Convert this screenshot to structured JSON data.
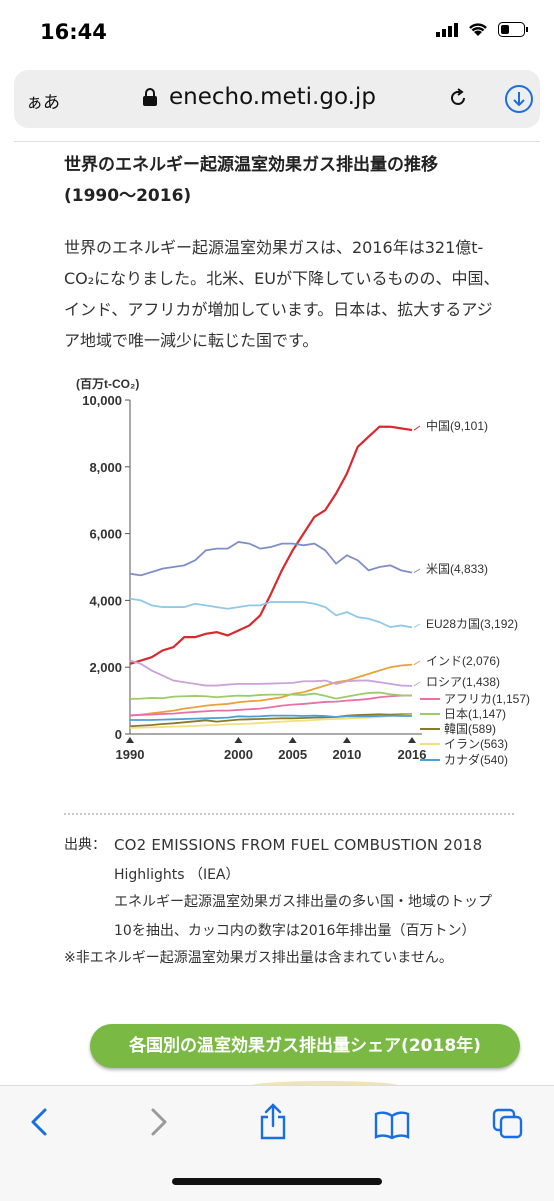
{
  "status_bar": {
    "time": "16:44"
  },
  "browser": {
    "aa_label": "ぁあ",
    "domain": "enecho.meti.go.jp"
  },
  "article": {
    "heading": "世界のエネルギー起源温室効果ガス排出量の推移(1990〜2016)",
    "body": "世界のエネルギー起源温室効果ガスは、2016年は321億t-CO₂になりました。北米、EUが下降しているものの、中国、インド、アフリカが増加しています。日本は、拡大するアジア地域で唯一減少に転じた国です。"
  },
  "chart_data": {
    "type": "line",
    "ylabel": "(百万t-CO₂)",
    "ylim": [
      0,
      10000
    ],
    "yticks": [
      "10,000",
      "8,000",
      "6,000",
      "4,000",
      "2,000",
      "0"
    ],
    "ytick_values": [
      10000,
      8000,
      6000,
      4000,
      2000,
      0
    ],
    "xticks": [
      "1990",
      "2000",
      "2005",
      "2010",
      "2016"
    ],
    "xtick_values": [
      1990,
      2000,
      2005,
      2010,
      2016
    ],
    "x": [
      1990,
      1991,
      1992,
      1993,
      1994,
      1995,
      1996,
      1997,
      1998,
      1999,
      2000,
      2001,
      2002,
      2003,
      2004,
      2005,
      2006,
      2007,
      2008,
      2009,
      2010,
      2011,
      2012,
      2013,
      2014,
      2015,
      2016
    ],
    "series": [
      {
        "name": "中国(9,101)",
        "color": "#d8292f",
        "values": [
          2100,
          2200,
          2300,
          2500,
          2600,
          2900,
          2900,
          3000,
          3050,
          2950,
          3100,
          3250,
          3550,
          4200,
          4900,
          5500,
          6000,
          6500,
          6700,
          7200,
          7800,
          8600,
          8900,
          9200,
          9200,
          9150,
          9101
        ]
      },
      {
        "name": "米国(4,833)",
        "color": "#7e8fc7",
        "values": [
          4800,
          4750,
          4850,
          4950,
          5000,
          5050,
          5200,
          5500,
          5550,
          5550,
          5750,
          5700,
          5550,
          5600,
          5700,
          5700,
          5650,
          5700,
          5500,
          5100,
          5350,
          5200,
          4900,
          5000,
          5050,
          4900,
          4833
        ]
      },
      {
        "name": "EU28カ国(3,192)",
        "color": "#8fc8ea",
        "values": [
          4050,
          4000,
          3850,
          3800,
          3800,
          3800,
          3900,
          3850,
          3800,
          3750,
          3800,
          3850,
          3850,
          3950,
          3950,
          3950,
          3950,
          3900,
          3800,
          3550,
          3650,
          3500,
          3450,
          3350,
          3200,
          3250,
          3192
        ]
      },
      {
        "name": "インド(2,076)",
        "color": "#e8a23a",
        "values": [
          550,
          580,
          620,
          660,
          700,
          760,
          800,
          850,
          880,
          900,
          950,
          980,
          1000,
          1050,
          1100,
          1200,
          1250,
          1350,
          1450,
          1550,
          1600,
          1700,
          1800,
          1900,
          2000,
          2050,
          2076
        ]
      },
      {
        "name": "ロシア(1,438)",
        "color": "#c9a3d9",
        "values": [
          2200,
          2100,
          1900,
          1750,
          1600,
          1550,
          1500,
          1450,
          1450,
          1480,
          1500,
          1500,
          1500,
          1510,
          1520,
          1530,
          1580,
          1580,
          1600,
          1500,
          1580,
          1600,
          1600,
          1550,
          1500,
          1450,
          1438
        ]
      },
      {
        "name": "アフリカ(1,157)",
        "color": "#ea6fa8",
        "values": [
          560,
          570,
          580,
          600,
          610,
          640,
          660,
          680,
          700,
          700,
          720,
          740,
          760,
          800,
          850,
          880,
          900,
          930,
          960,
          970,
          1000,
          1020,
          1050,
          1100,
          1130,
          1150,
          1157
        ]
      },
      {
        "name": "日本(1,147)",
        "color": "#9ccb6a",
        "values": [
          1050,
          1060,
          1080,
          1070,
          1120,
          1130,
          1140,
          1130,
          1100,
          1130,
          1150,
          1140,
          1170,
          1180,
          1180,
          1180,
          1170,
          1210,
          1140,
          1060,
          1120,
          1180,
          1230,
          1240,
          1190,
          1160,
          1147
        ]
      },
      {
        "name": "韓国(589)",
        "color": "#8b7a2a",
        "values": [
          230,
          250,
          270,
          300,
          320,
          350,
          380,
          410,
          370,
          400,
          430,
          440,
          450,
          460,
          470,
          470,
          480,
          490,
          500,
          510,
          550,
          570,
          580,
          590,
          580,
          590,
          589
        ]
      },
      {
        "name": "イラン(563)",
        "color": "#f2e07a",
        "values": [
          180,
          190,
          200,
          210,
          220,
          230,
          240,
          260,
          270,
          290,
          300,
          310,
          330,
          350,
          370,
          390,
          400,
          420,
          440,
          450,
          460,
          480,
          490,
          510,
          540,
          550,
          563
        ]
      },
      {
        "name": "カナダ(540)",
        "color": "#4aa0d8",
        "values": [
          420,
          420,
          420,
          430,
          440,
          450,
          460,
          470,
          480,
          490,
          530,
          520,
          530,
          550,
          550,
          550,
          540,
          550,
          540,
          510,
          530,
          530,
          530,
          540,
          550,
          540,
          540
        ]
      }
    ]
  },
  "source": {
    "label": "出典：",
    "line1": "CO2 EMISSIONS FROM FUEL COMBUSTION 2018",
    "line2": "Highlights （IEA）",
    "line3": "エネルギー起源温室効果ガス排出量の多い国・地域のトップ",
    "line4": "10を抽出、カッコ内の数字は2016年排出量（百万トン）",
    "note": "※非エネルギー起源温室効果ガス排出量は含まれていません。"
  },
  "section_pill": "各国別の温室効果ガス排出量シェア(2018年)",
  "colors": {
    "accent_blue": "#1a6fe0",
    "pill_green": "#79b944"
  }
}
